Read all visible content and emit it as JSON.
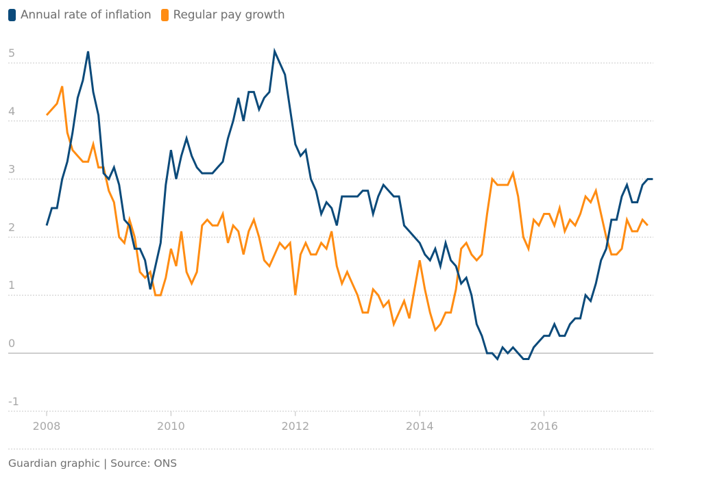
{
  "legend": {
    "items": [
      {
        "label": "Annual rate of inflation",
        "color": "#0b4a7a"
      },
      {
        "label": "Regular pay growth",
        "color": "#ff8c12"
      }
    ]
  },
  "footer": {
    "source": "Guardian graphic | Source: ONS"
  },
  "chart_data": {
    "type": "line",
    "title": "",
    "xlabel": "",
    "ylabel": "",
    "x_start": "2008-01",
    "x_interval": "month",
    "xlim": [
      2008.0,
      2017.77
    ],
    "ylim": [
      -1,
      5.3
    ],
    "yticks": [
      -1,
      0,
      1,
      2,
      3,
      4,
      5
    ],
    "xticks": [
      2008,
      2010,
      2012,
      2014,
      2016
    ],
    "grid": true,
    "legend_position": "top-left",
    "series": [
      {
        "name": "Annual rate of inflation",
        "color": "#0b4a7a",
        "values": [
          2.2,
          2.5,
          2.5,
          3.0,
          3.3,
          3.8,
          4.4,
          4.7,
          5.2,
          4.5,
          4.1,
          3.1,
          3.0,
          3.2,
          2.9,
          2.3,
          2.2,
          1.8,
          1.8,
          1.6,
          1.1,
          1.5,
          1.9,
          2.9,
          3.5,
          3.0,
          3.4,
          3.7,
          3.4,
          3.2,
          3.1,
          3.1,
          3.1,
          3.2,
          3.3,
          3.7,
          4.0,
          4.4,
          4.0,
          4.5,
          4.5,
          4.2,
          4.4,
          4.5,
          5.2,
          5.0,
          4.8,
          4.2,
          3.6,
          3.4,
          3.5,
          3.0,
          2.8,
          2.4,
          2.6,
          2.5,
          2.2,
          2.7,
          2.7,
          2.7,
          2.7,
          2.8,
          2.8,
          2.4,
          2.7,
          2.9,
          2.8,
          2.7,
          2.7,
          2.2,
          2.1,
          2.0,
          1.9,
          1.7,
          1.6,
          1.8,
          1.5,
          1.9,
          1.6,
          1.5,
          1.2,
          1.3,
          1.0,
          0.5,
          0.3,
          0.0,
          0.0,
          -0.1,
          0.1,
          0.0,
          0.1,
          0.0,
          -0.1,
          -0.1,
          0.1,
          0.2,
          0.3,
          0.3,
          0.5,
          0.3,
          0.3,
          0.5,
          0.6,
          0.6,
          1.0,
          0.9,
          1.2,
          1.6,
          1.8,
          2.3,
          2.3,
          2.7,
          2.9,
          2.6,
          2.6,
          2.9,
          3.0,
          3.0
        ]
      },
      {
        "name": "Regular pay growth",
        "color": "#ff8c12",
        "values": [
          4.1,
          4.2,
          4.3,
          4.6,
          3.8,
          3.5,
          3.4,
          3.3,
          3.3,
          3.6,
          3.2,
          3.2,
          2.8,
          2.6,
          2.0,
          1.9,
          2.3,
          2.0,
          1.4,
          1.3,
          1.4,
          1.0,
          1.0,
          1.3,
          1.8,
          1.5,
          2.1,
          1.4,
          1.2,
          1.4,
          2.2,
          2.3,
          2.2,
          2.2,
          2.4,
          1.9,
          2.2,
          2.1,
          1.7,
          2.1,
          2.3,
          2.0,
          1.6,
          1.5,
          1.7,
          1.9,
          1.8,
          1.9,
          1.0,
          1.7,
          1.9,
          1.7,
          1.7,
          1.9,
          1.8,
          2.1,
          1.5,
          1.2,
          1.4,
          1.2,
          1.0,
          0.7,
          0.7,
          1.1,
          1.0,
          0.8,
          0.9,
          0.5,
          0.7,
          0.9,
          0.6,
          1.1,
          1.6,
          1.1,
          0.7,
          0.4,
          0.5,
          0.7,
          0.7,
          1.1,
          1.8,
          1.9,
          1.7,
          1.6,
          1.7,
          2.4,
          3.0,
          2.9,
          2.9,
          2.9,
          3.1,
          2.7,
          2.0,
          1.8,
          2.3,
          2.2,
          2.4,
          2.4,
          2.2,
          2.5,
          2.1,
          2.3,
          2.2,
          2.4,
          2.7,
          2.6,
          2.8,
          2.4,
          2.0,
          1.7,
          1.7,
          1.8,
          2.3,
          2.1,
          2.1,
          2.3,
          2.2
        ]
      }
    ]
  }
}
